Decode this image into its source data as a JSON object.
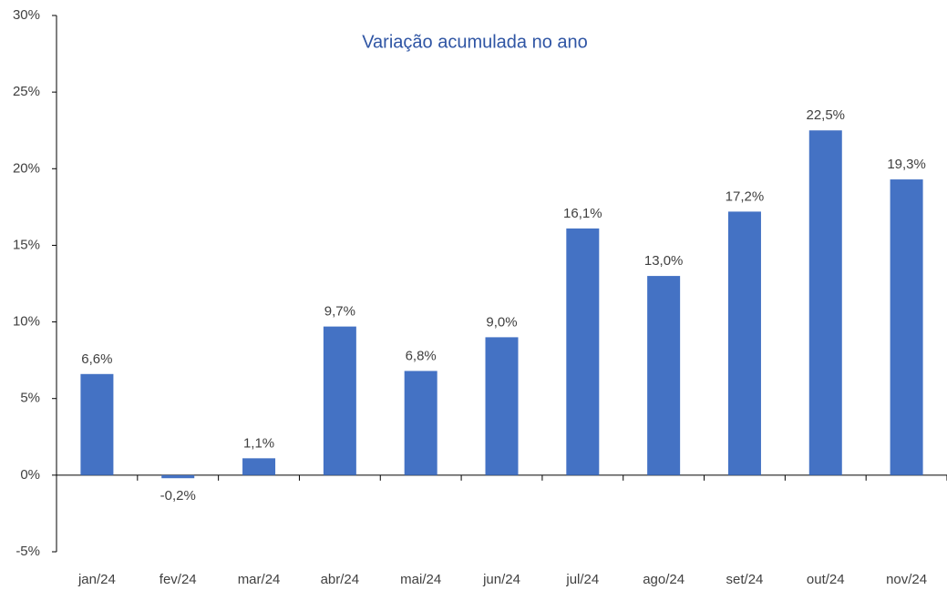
{
  "chart_data": {
    "type": "bar",
    "title": "Variação acumulada no ano",
    "categories": [
      "jan/24",
      "fev/24",
      "mar/24",
      "abr/24",
      "mai/24",
      "jun/24",
      "jul/24",
      "ago/24",
      "set/24",
      "out/24",
      "nov/24"
    ],
    "values": [
      6.6,
      -0.2,
      1.1,
      9.7,
      6.8,
      9.0,
      16.1,
      13.0,
      17.2,
      22.5,
      19.3
    ],
    "value_labels": [
      "6,6%",
      "-0,2%",
      "1,1%",
      "9,7%",
      "6,8%",
      "9,0%",
      "16,1%",
      "13,0%",
      "17,2%",
      "22,5%",
      "19,3%"
    ],
    "color": "#4472c4",
    "ylim": [
      -5,
      30
    ],
    "yticks": [
      {
        "value": -5,
        "label": "-5%"
      },
      {
        "value": 0,
        "label": "0%"
      },
      {
        "value": 5,
        "label": "5%"
      },
      {
        "value": 10,
        "label": "10%"
      },
      {
        "value": 15,
        "label": "15%"
      },
      {
        "value": 20,
        "label": "20%"
      },
      {
        "value": 25,
        "label": "25%"
      },
      {
        "value": 30,
        "label": "30%"
      }
    ],
    "grid": false
  }
}
